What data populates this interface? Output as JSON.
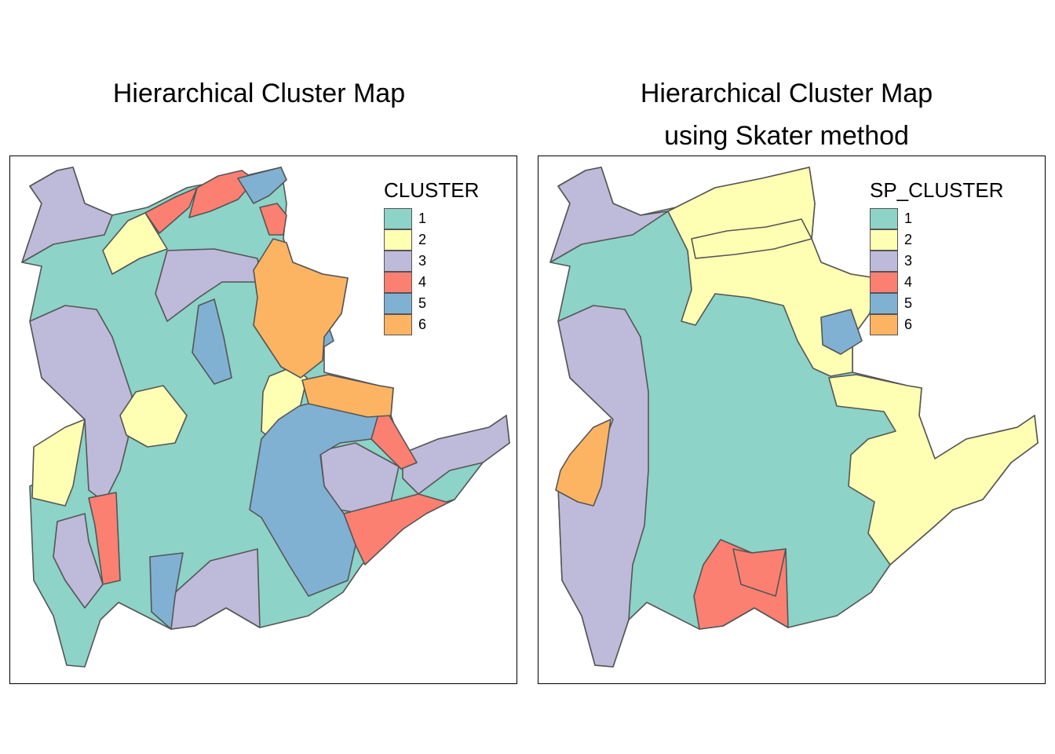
{
  "maps": [
    {
      "title_lines": [
        "Hierarchical Cluster Map"
      ],
      "legend_title": "CLUSTER",
      "classes": [
        {
          "label": "1",
          "color": "#8DD3C7"
        },
        {
          "label": "2",
          "color": "#FFFFB3"
        },
        {
          "label": "3",
          "color": "#BEBADA"
        },
        {
          "label": "4",
          "color": "#FB8072"
        },
        {
          "label": "5",
          "color": "#80B1D3"
        },
        {
          "label": "6",
          "color": "#FDB462"
        }
      ]
    },
    {
      "title_lines": [
        "Hierarchical Cluster Map",
        "using Skater method"
      ],
      "legend_title": "SP_CLUSTER",
      "classes": [
        {
          "label": "1",
          "color": "#8DD3C7"
        },
        {
          "label": "2",
          "color": "#FFFFB3"
        },
        {
          "label": "3",
          "color": "#BEBADA"
        },
        {
          "label": "4",
          "color": "#FB8072"
        },
        {
          "label": "5",
          "color": "#80B1D3"
        },
        {
          "label": "6",
          "color": "#FDB462"
        }
      ]
    }
  ],
  "border_color": "#555555"
}
